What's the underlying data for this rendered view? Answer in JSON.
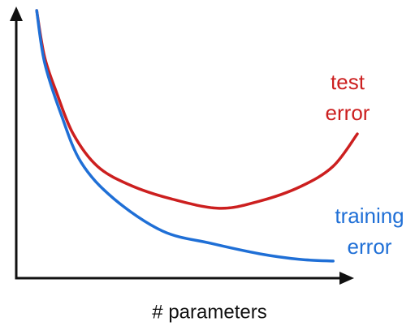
{
  "chart_data": {
    "type": "line",
    "x_label": "# parameters",
    "xlim": [
      0,
      100
    ],
    "ylim": [
      0,
      100
    ],
    "series": [
      {
        "name": "test error",
        "color": "#cc1f1f",
        "x": [
          6,
          8.3,
          11.9,
          16.7,
          23.8,
          33.3,
          45.2,
          59.5,
          71.4,
          83.3,
          92.9,
          100
        ],
        "values": [
          100,
          82.7,
          69.1,
          53.9,
          41.8,
          34.8,
          29.7,
          26.1,
          28.8,
          34.2,
          41.8,
          53.9
        ]
      },
      {
        "name": "training error",
        "color": "#1f6fd6",
        "x": [
          6,
          8.3,
          13.1,
          19,
          28.6,
          42.9,
          57.1,
          71.4,
          83.3,
          92.9
        ],
        "values": [
          100,
          80.6,
          61.4,
          43.3,
          29.7,
          17.6,
          13,
          9.1,
          7,
          6.4
        ]
      }
    ]
  }
}
